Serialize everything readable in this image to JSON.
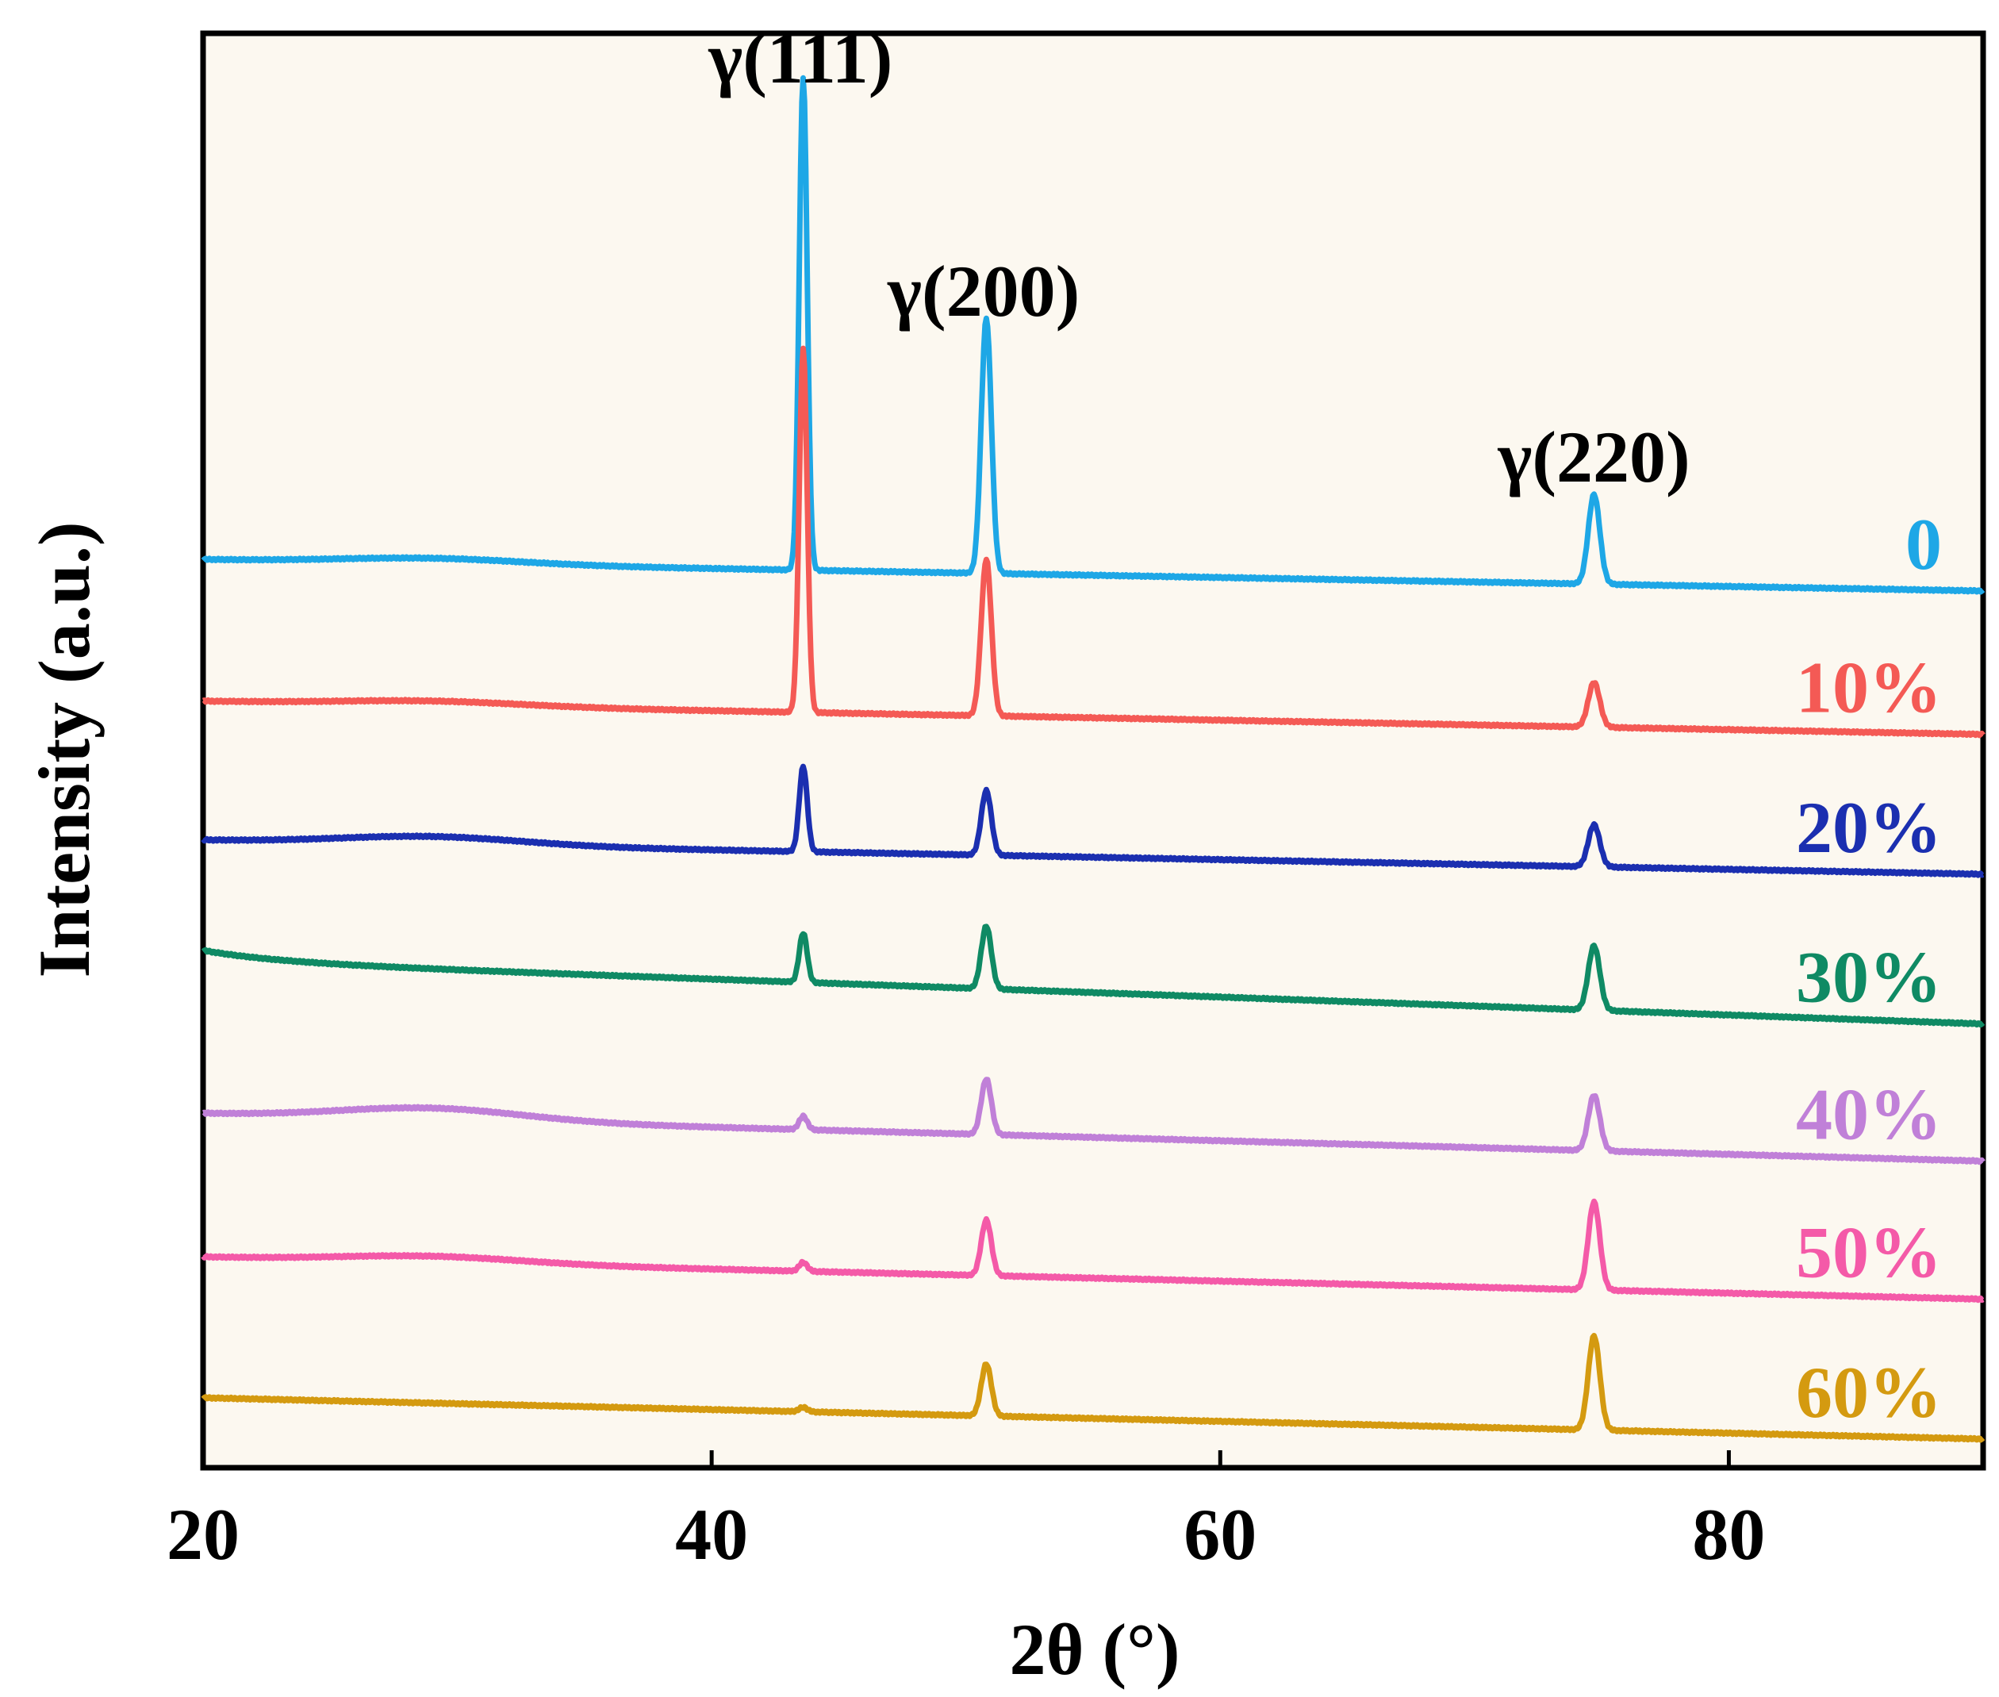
{
  "chart_data": {
    "type": "line",
    "title": "",
    "xlabel": "2θ  (°)",
    "ylabel": "Intensity (a.u.)",
    "xlim": [
      20,
      90
    ],
    "ylim": [
      0,
      16
    ],
    "xticks": [
      20,
      40,
      60,
      80
    ],
    "xtick_labels": [
      "20",
      "40",
      "60",
      "80"
    ],
    "grid": false,
    "background": "#fcf8f0",
    "annotations": [
      {
        "text": "γ(111)",
        "x": 43.5,
        "y": 15.45
      },
      {
        "text": "γ(200)",
        "x": 50.7,
        "y": 12.85
      },
      {
        "text": "γ(220)",
        "x": 74.7,
        "y": 11.0
      }
    ],
    "series": [
      {
        "name": "0",
        "color": "#1ea7e6",
        "baseline_start": 10.13,
        "baseline_end": 9.78,
        "hump": 0.06,
        "peaks": {
          "p111": 5.5,
          "p200": 2.85,
          "p220": 1.0
        }
      },
      {
        "name": "10%",
        "color": "#f45a55",
        "baseline_start": 8.55,
        "baseline_end": 8.18,
        "hump": 0.05,
        "peaks": {
          "p111": 4.05,
          "p200": 1.75,
          "p220": 0.5
        }
      },
      {
        "name": "20%",
        "color": "#1b2fb0",
        "baseline_start": 7.0,
        "baseline_end": 6.62,
        "hump": 0.09,
        "peaks": {
          "p111": 0.95,
          "p200": 0.72,
          "p220": 0.47
        }
      },
      {
        "name": "30%",
        "color": "#0f8a64",
        "baseline_start": 5.65,
        "baseline_end": 4.95,
        "hump": 0.0,
        "peaks": {
          "p111": 0.55,
          "p200": 0.7,
          "p220": 0.72
        }
      },
      {
        "name": "40%",
        "color": "#c080d8",
        "baseline_start": 3.95,
        "baseline_end": 3.42,
        "hump": 0.13,
        "peaks": {
          "p111": 0.15,
          "p200": 0.62,
          "p220": 0.62
        }
      },
      {
        "name": "50%",
        "color": "#f45aa8",
        "baseline_start": 2.35,
        "baseline_end": 1.88,
        "hump": 0.07,
        "peaks": {
          "p111": 0.1,
          "p200": 0.62,
          "p220": 0.98
        }
      },
      {
        "name": "60%",
        "color": "#d49a10",
        "baseline_start": 0.78,
        "baseline_end": 0.32,
        "hump": 0.0,
        "peaks": {
          "p111": 0.05,
          "p200": 0.58,
          "p220": 1.05
        }
      }
    ],
    "peak_positions": {
      "p111": 43.6,
      "p200": 50.8,
      "p220": 74.7
    },
    "legend": "inline-right"
  }
}
